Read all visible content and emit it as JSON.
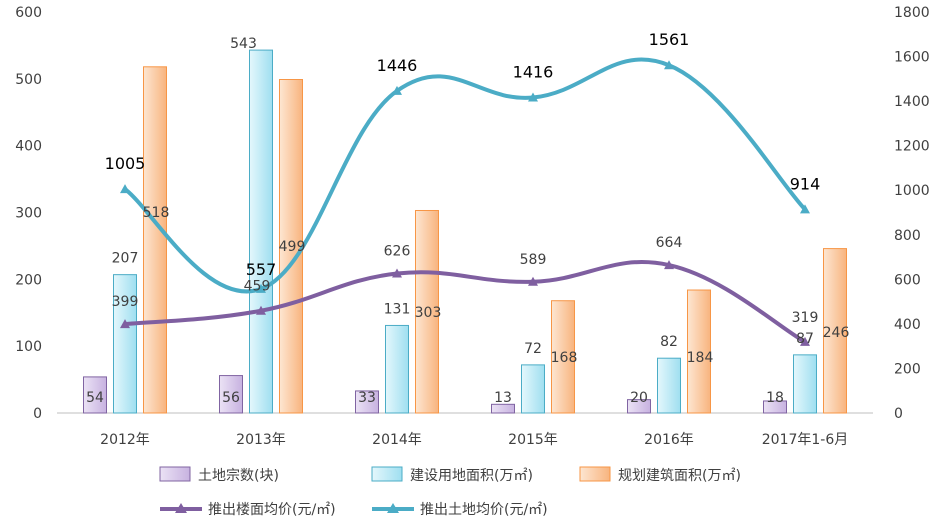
{
  "chart_data": {
    "type": "bar",
    "categories": [
      "2012年",
      "2013年",
      "2014年",
      "2015年",
      "2016年",
      "2017年1-6月"
    ],
    "left_axis": {
      "min": 0,
      "max": 600,
      "ticks": [
        "0",
        "100",
        "200",
        "300",
        "400",
        "500",
        "600"
      ]
    },
    "right_axis": {
      "min": 0,
      "max": 1800,
      "ticks": [
        "0",
        "200",
        "400",
        "600",
        "800",
        "1000",
        "1200",
        "1400",
        "1600",
        "1800"
      ]
    },
    "series": [
      {
        "name": "土地宗数(块)",
        "type": "bar",
        "axis": "left",
        "fill": "#d9c8ec",
        "stroke": "#8064a2",
        "values": [
          54,
          56,
          33,
          13,
          20,
          18
        ]
      },
      {
        "name": "建设用地面积(万㎡)",
        "type": "bar",
        "axis": "left",
        "fill": "#c8eef8",
        "stroke": "#4bacc6",
        "values": [
          207,
          543,
          131,
          72,
          82,
          87
        ]
      },
      {
        "name": "规划建筑面积(万㎡)",
        "type": "bar",
        "axis": "left",
        "fill": "#fcd3b0",
        "stroke": "#f79646",
        "values": [
          518,
          499,
          303,
          168,
          184,
          246
        ]
      },
      {
        "name": "推出楼面均价(元/㎡)",
        "type": "line",
        "axis": "right",
        "color": "#7f5fa0",
        "values": [
          399,
          459,
          626,
          589,
          664,
          319
        ]
      },
      {
        "name": "推出土地均价(元/㎡)",
        "type": "line",
        "axis": "right",
        "color": "#4bacc6",
        "values": [
          1005,
          557,
          1446,
          1416,
          1561,
          914
        ]
      }
    ]
  }
}
